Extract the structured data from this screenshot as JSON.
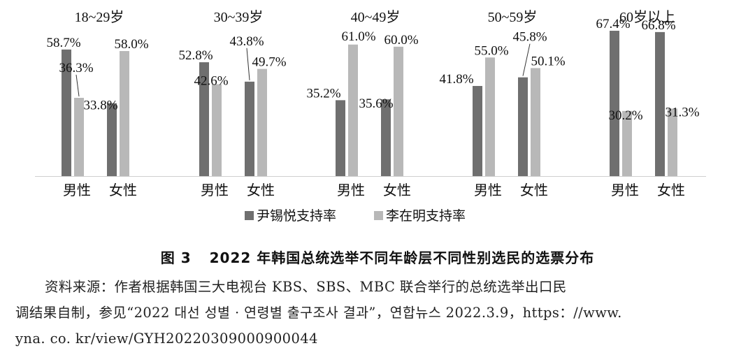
{
  "chart_data": {
    "type": "bar",
    "groups": [
      "18~29岁",
      "30~39岁",
      "40~49岁",
      "50~59岁",
      "60岁以上"
    ],
    "categories": [
      "男性",
      "女性"
    ],
    "series": [
      {
        "name": "尹锡悦支持率",
        "color": "#6f6f6f",
        "values": [
          [
            58.7,
            33.8
          ],
          [
            52.8,
            43.8
          ],
          [
            35.2,
            35.6
          ],
          [
            41.8,
            45.8
          ],
          [
            67.4,
            66.8
          ]
        ],
        "labels": [
          [
            "58.7%",
            "33.8%"
          ],
          [
            "52.8%",
            "43.8%"
          ],
          [
            "35.2%",
            "35.6%"
          ],
          [
            "41.8%",
            "45.8%"
          ],
          [
            "67.4%",
            "66.8%"
          ]
        ]
      },
      {
        "name": "李在明支持率",
        "color": "#b8b8b8",
        "values": [
          [
            36.3,
            58.0
          ],
          [
            42.6,
            49.7
          ],
          [
            61.0,
            60.0
          ],
          [
            55.0,
            50.1
          ],
          [
            30.2,
            31.3
          ]
        ],
        "labels": [
          [
            "36.3%",
            "58.0%"
          ],
          [
            "42.6%",
            "49.7%"
          ],
          [
            "61.0%",
            "60.0%"
          ],
          [
            "55.0%",
            "50.1%"
          ],
          [
            "30.2%",
            "31.3%"
          ]
        ]
      }
    ],
    "ylim": [
      0,
      70
    ],
    "grid": false,
    "legend": "bottom-center"
  },
  "caption": {
    "figure_no": "图 3",
    "title": "2022 年韩国总统选举不同年龄层不同性别选民的选票分布"
  },
  "source": {
    "line1": "资料来源：作者根据韩国三大电视台 KBS、SBS、MBC 联合举行的总统选举出口民",
    "line2": "调结果自制，参见“2022 대선 성별 · 연령별 출구조사 결과”，연합뉴스 2022.3.9，https：//www.",
    "line3": "yna. co. kr/view/GYH20220309000900044"
  }
}
